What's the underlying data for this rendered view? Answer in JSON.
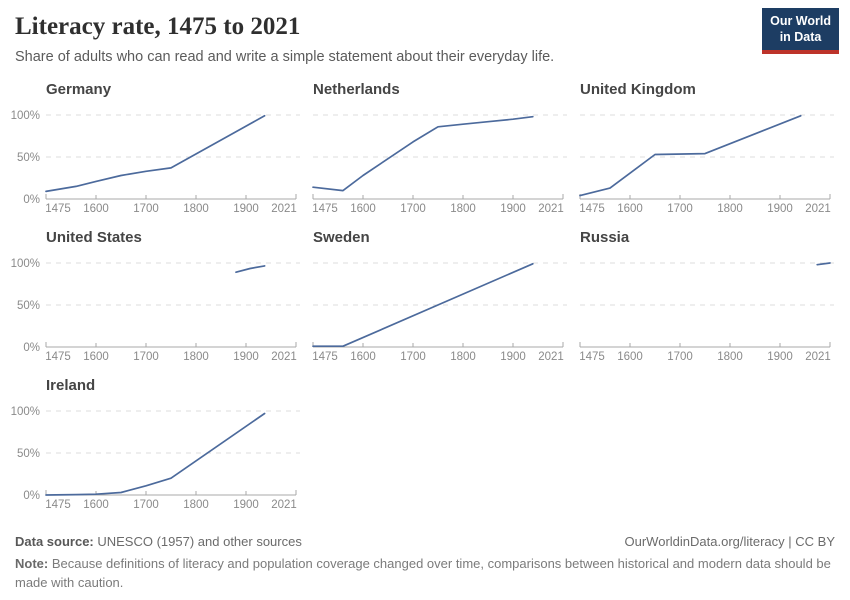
{
  "header": {
    "title": "Literacy rate, 1475 to 2021",
    "subtitle": "Share of adults who can read and write a simple statement about their everyday life.",
    "logo": {
      "line1": "Our World",
      "line2": "in Data",
      "bg_color": "#1d3d63",
      "accent_color": "#bd332a"
    }
  },
  "chart_data": {
    "type": "line",
    "x_ticks": [
      1475,
      1600,
      1700,
      1800,
      1900,
      2021
    ],
    "x_tick_labels": [
      "1475",
      "1600",
      "1700",
      "1800",
      "1900",
      "2021"
    ],
    "y_ticks": [
      [
        0,
        "0%"
      ],
      [
        50,
        "50%"
      ],
      [
        100,
        "100%"
      ]
    ],
    "ylim": [
      0,
      100
    ],
    "grid": "dashed-horizontal",
    "line_color": "#4C6A9C",
    "axis_color": "#a8a8a8",
    "grid_color": "#dcdcdc",
    "tick_label_color": "#8a8a8a",
    "charts": [
      {
        "title": "Germany",
        "show_y_axis": true,
        "points": [
          [
            1475,
            9
          ],
          [
            1550,
            15
          ],
          [
            1600,
            21
          ],
          [
            1650,
            28
          ],
          [
            1700,
            33
          ],
          [
            1750,
            37
          ],
          [
            1945,
            99
          ]
        ]
      },
      {
        "title": "Netherlands",
        "show_y_axis": false,
        "points": [
          [
            1475,
            14
          ],
          [
            1550,
            10
          ],
          [
            1600,
            28
          ],
          [
            1650,
            48
          ],
          [
            1700,
            68
          ],
          [
            1750,
            86
          ],
          [
            1800,
            89
          ],
          [
            1850,
            92
          ],
          [
            1900,
            95
          ],
          [
            1948,
            98
          ]
        ]
      },
      {
        "title": "United Kingdom",
        "show_y_axis": false,
        "points": [
          [
            1475,
            4
          ],
          [
            1550,
            13
          ],
          [
            1650,
            53
          ],
          [
            1750,
            54
          ],
          [
            1950,
            99
          ]
        ]
      },
      {
        "title": "United States",
        "show_y_axis": true,
        "points": [
          [
            1880,
            89
          ],
          [
            1910,
            93.5
          ],
          [
            1945,
            96.5
          ]
        ]
      },
      {
        "title": "Sweden",
        "show_y_axis": false,
        "points": [
          [
            1475,
            1
          ],
          [
            1550,
            1
          ],
          [
            1948,
            99
          ]
        ]
      },
      {
        "title": "Russia",
        "show_y_axis": false,
        "points": [
          [
            1990,
            98
          ],
          [
            2021,
            100
          ]
        ]
      },
      {
        "title": "Ireland",
        "show_y_axis": true,
        "points": [
          [
            1475,
            0
          ],
          [
            1550,
            0.5
          ],
          [
            1600,
            1
          ],
          [
            1650,
            3
          ],
          [
            1700,
            11
          ],
          [
            1750,
            20
          ],
          [
            1945,
            97
          ]
        ]
      }
    ]
  },
  "footer": {
    "source_label": "Data source:",
    "source_text": " UNESCO (1957) and other sources",
    "link_text": "OurWorldinData.org/literacy | CC BY",
    "note_label": "Note:",
    "note_text": " Because definitions of literacy and population coverage changed over time, comparisons between historical and modern data should be made with caution."
  }
}
